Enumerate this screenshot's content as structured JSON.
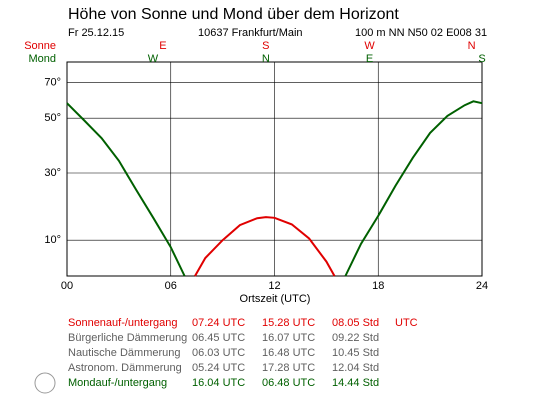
{
  "chart_data": {
    "type": "line",
    "title": "Höhe von Sonne und Mond über dem Horizont",
    "date": "Fr 25.12.15",
    "place": "10637 Frankfurt/Main",
    "position": "100 m NN N50 02 E008 31",
    "x_label": "Ortszeit (UTC)",
    "xlim": [
      0,
      24
    ],
    "xticks": [
      {
        "value": 0,
        "label": "00"
      },
      {
        "value": 6,
        "label": "06"
      },
      12,
      18,
      24
    ],
    "ylim": [
      0,
      90
    ],
    "yscale": "sine",
    "yticks": [
      {
        "value": 10,
        "label": "10°"
      },
      {
        "value": 30,
        "label": "30°"
      },
      {
        "value": 50,
        "label": "50°"
      },
      {
        "value": 70,
        "label": "70°"
      }
    ],
    "grid": true,
    "series": [
      {
        "name": "Sonne",
        "color": "#e00000",
        "directions": [
          {
            "label": "E",
            "x": 5.55
          },
          {
            "label": "S",
            "x": 11.5
          },
          {
            "label": "W",
            "x": 17.5
          },
          {
            "label": "N",
            "x": 23.4
          }
        ],
        "x": [
          7.4,
          8,
          9,
          10,
          11,
          11.5,
          12,
          13,
          14,
          15,
          15.47
        ],
        "values": [
          0,
          5,
          10,
          14.3,
          16.3,
          16.6,
          16.4,
          14.5,
          10.5,
          4,
          0
        ]
      },
      {
        "name": "Mond",
        "color": "#006000",
        "directions": [
          {
            "label": "W",
            "x": 4.97
          },
          {
            "label": "N",
            "x": 11.5
          },
          {
            "label": "E",
            "x": 17.5
          },
          {
            "label": "S",
            "x": 24
          }
        ],
        "x": [
          0,
          1,
          2,
          3,
          4,
          5,
          6,
          6.8,
          null,
          16.1,
          17,
          18,
          19,
          20,
          21,
          22,
          23,
          23.5,
          24
        ],
        "values": [
          57,
          49,
          42,
          34,
          24.7,
          16.3,
          8,
          0,
          null,
          0,
          9,
          17,
          26,
          35,
          44,
          51,
          56,
          58,
          57
        ]
      }
    ]
  },
  "info_table": {
    "rows": [
      {
        "color": "#e00000",
        "cells": [
          "Sonnenauf-/untergang",
          "07.24 UTC",
          "15.28 UTC",
          "08.05 Std",
          "UTC"
        ]
      },
      {
        "color": "#606060",
        "cells": [
          "Bürgerliche Dämmerung",
          "06.45 UTC",
          "16.07 UTC",
          "09.22 Std"
        ]
      },
      {
        "color": "#606060",
        "cells": [
          "Nautische Dämmerung",
          "06.03 UTC",
          "16.48 UTC",
          "10.45 Std"
        ]
      },
      {
        "color": "#606060",
        "cells": [
          "Astronom. Dämmerung",
          "05.24 UTC",
          "17.28 UTC",
          "12.04 Std"
        ]
      },
      {
        "color": "#006000",
        "cells": [
          "Mondauf-/untergang",
          "16.04 UTC",
          "06.48 UTC",
          "14.44 Std"
        ]
      }
    ],
    "moon_phase": "Vollmond"
  }
}
